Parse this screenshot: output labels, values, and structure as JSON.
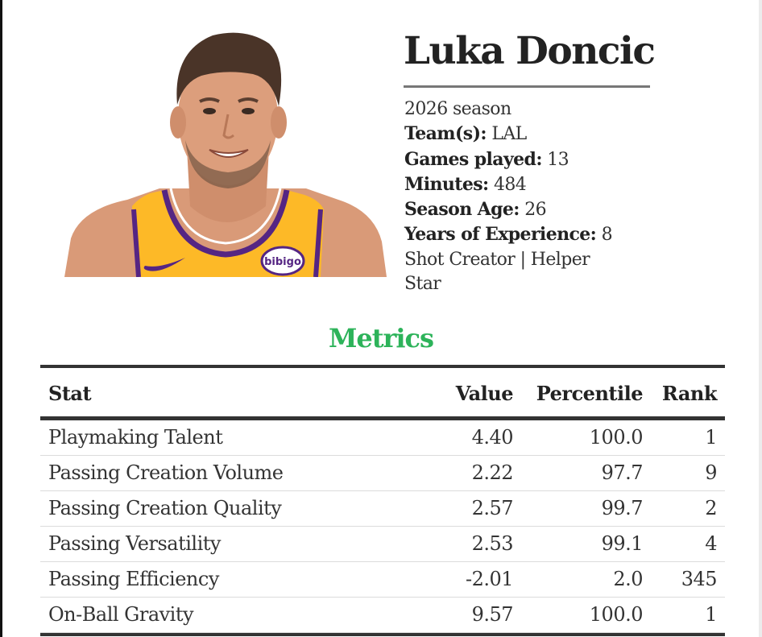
{
  "player": {
    "name": "Luka Doncic",
    "season": "2026 season",
    "team_label": "Team(s):",
    "team": "LAL",
    "games_label": "Games played:",
    "games": "13",
    "minutes_label": "Minutes:",
    "minutes": "484",
    "age_label": "Season Age:",
    "age": "26",
    "experience_label": "Years of Experience:",
    "experience": "8",
    "archetype_line1": "Shot Creator | Helper",
    "archetype_line2": "Star"
  },
  "metrics": {
    "title": "Metrics",
    "title_color": "#2db35a",
    "headers": {
      "stat": "Stat",
      "value": "Value",
      "percentile": "Percentile",
      "rank": "Rank"
    },
    "rows": [
      {
        "stat": "Playmaking Talent",
        "value": "4.40",
        "percentile": "100.0",
        "rank": "1"
      },
      {
        "stat": "Passing Creation Volume",
        "value": "2.22",
        "percentile": "97.7",
        "rank": "9"
      },
      {
        "stat": "Passing Creation Quality",
        "value": "2.57",
        "percentile": "99.7",
        "rank": "2"
      },
      {
        "stat": "Passing Versatility",
        "value": "2.53",
        "percentile": "99.1",
        "rank": "4"
      },
      {
        "stat": "Passing Efficiency",
        "value": "-2.01",
        "percentile": "2.0",
        "rank": "345"
      },
      {
        "stat": "On-Ball Gravity",
        "value": "9.57",
        "percentile": "100.0",
        "rank": "1"
      }
    ]
  },
  "photo": {
    "jersey_color": "#fdb927",
    "trim_color": "#552583",
    "sponsor": "bibigo"
  }
}
